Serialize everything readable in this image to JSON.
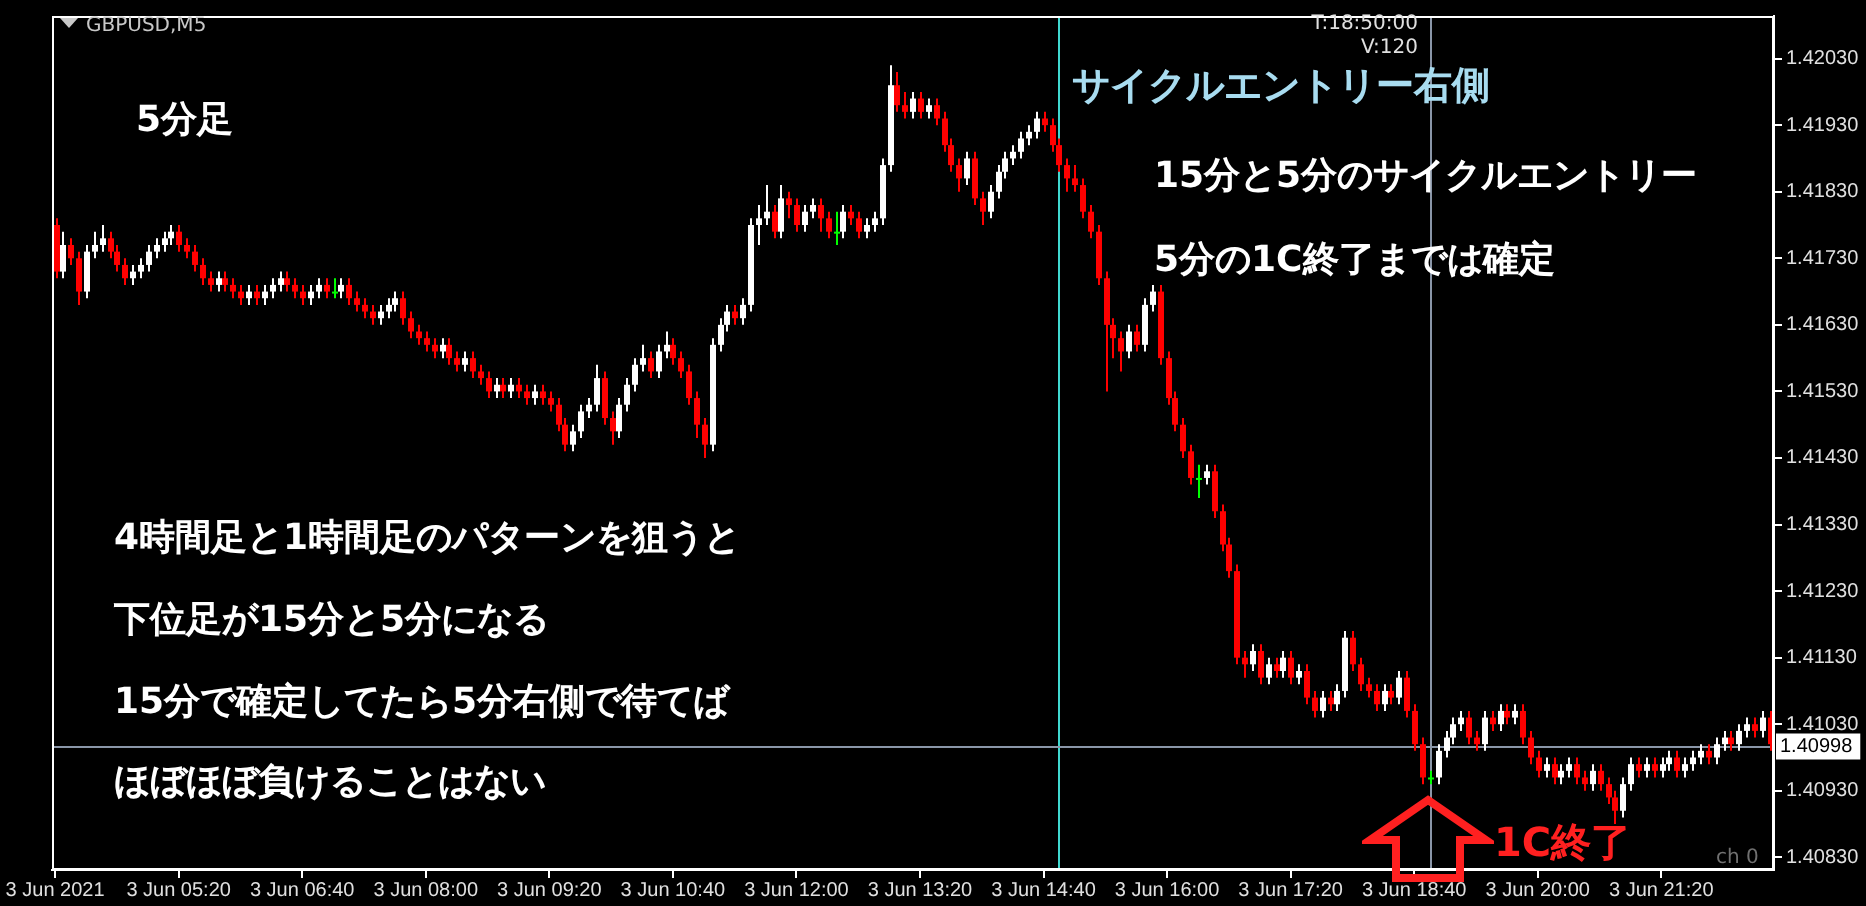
{
  "chart_data": {
    "type": "candlestick",
    "x": [
      "2021-06-03T04:00",
      "2021-06-03T04:05",
      "2021-06-03T04:10",
      "2021-06-03T04:15",
      "2021-06-03T04:20",
      "2021-06-03T04:25",
      "2021-06-03T04:30",
      "2021-06-03T04:35",
      "2021-06-03T04:40",
      "2021-06-03T04:45",
      "2021-06-03T04:50",
      "2021-06-03T04:55",
      "2021-06-03T05:00",
      "2021-06-03T05:05",
      "2021-06-03T05:10",
      "2021-06-03T05:15",
      "2021-06-03T05:20",
      "2021-06-03T05:25",
      "2021-06-03T05:30",
      "2021-06-03T05:35",
      "2021-06-03T05:40",
      "2021-06-03T05:45",
      "2021-06-03T05:50",
      "2021-06-03T05:55",
      "2021-06-03T06:00",
      "2021-06-03T06:05",
      "2021-06-03T06:10",
      "2021-06-03T06:15",
      "2021-06-03T06:20",
      "2021-06-03T06:25",
      "2021-06-03T06:30",
      "2021-06-03T06:35",
      "2021-06-03T06:40",
      "2021-06-03T06:45",
      "2021-06-03T06:50",
      "2021-06-03T06:55",
      "2021-06-03T07:00",
      "2021-06-03T07:05",
      "2021-06-03T07:10",
      "2021-06-03T07:15",
      "2021-06-03T07:20",
      "2021-06-03T07:25",
      "2021-06-03T07:30",
      "2021-06-03T07:35",
      "2021-06-03T07:40",
      "2021-06-03T07:45",
      "2021-06-03T07:50",
      "2021-06-03T07:55",
      "2021-06-03T08:00",
      "2021-06-03T08:05",
      "2021-06-03T08:10",
      "2021-06-03T08:15",
      "2021-06-03T08:20",
      "2021-06-03T08:25",
      "2021-06-03T08:30",
      "2021-06-03T08:35",
      "2021-06-03T08:40",
      "2021-06-03T08:45",
      "2021-06-03T08:50",
      "2021-06-03T08:55",
      "2021-06-03T09:00",
      "2021-06-03T09:05",
      "2021-06-03T09:10",
      "2021-06-03T09:15",
      "2021-06-03T09:20",
      "2021-06-03T09:25",
      "2021-06-03T09:30",
      "2021-06-03T09:35",
      "2021-06-03T09:40",
      "2021-06-03T09:45",
      "2021-06-03T09:50",
      "2021-06-03T09:55",
      "2021-06-03T10:00",
      "2021-06-03T10:05",
      "2021-06-03T10:10",
      "2021-06-03T10:15",
      "2021-06-03T10:20",
      "2021-06-03T10:25",
      "2021-06-03T10:30",
      "2021-06-03T10:35",
      "2021-06-03T10:40",
      "2021-06-03T10:45",
      "2021-06-03T10:50",
      "2021-06-03T10:55",
      "2021-06-03T11:00",
      "2021-06-03T11:05",
      "2021-06-03T11:10",
      "2021-06-03T11:15",
      "2021-06-03T11:20",
      "2021-06-03T11:25",
      "2021-06-03T11:30",
      "2021-06-03T11:35",
      "2021-06-03T11:40",
      "2021-06-03T11:45",
      "2021-06-03T11:50",
      "2021-06-03T11:55",
      "2021-06-03T12:00",
      "2021-06-03T12:05",
      "2021-06-03T12:10",
      "2021-06-03T12:15",
      "2021-06-03T12:20",
      "2021-06-03T12:25",
      "2021-06-03T12:30",
      "2021-06-03T12:35",
      "2021-06-03T12:40",
      "2021-06-03T12:45",
      "2021-06-03T12:50",
      "2021-06-03T12:55",
      "2021-06-03T13:00",
      "2021-06-03T13:05",
      "2021-06-03T13:10",
      "2021-06-03T13:15",
      "2021-06-03T13:20",
      "2021-06-03T13:25",
      "2021-06-03T13:30",
      "2021-06-03T13:35",
      "2021-06-03T13:40",
      "2021-06-03T13:45",
      "2021-06-03T13:50",
      "2021-06-03T13:55",
      "2021-06-03T14:00",
      "2021-06-03T14:05",
      "2021-06-03T14:10",
      "2021-06-03T14:15",
      "2021-06-03T14:20",
      "2021-06-03T14:25",
      "2021-06-03T14:30",
      "2021-06-03T14:35",
      "2021-06-03T14:40",
      "2021-06-03T14:45",
      "2021-06-03T14:50",
      "2021-06-03T14:55",
      "2021-06-03T15:00",
      "2021-06-03T15:05",
      "2021-06-03T15:10",
      "2021-06-03T15:15",
      "2021-06-03T15:20",
      "2021-06-03T15:25",
      "2021-06-03T15:30",
      "2021-06-03T15:35",
      "2021-06-03T15:40",
      "2021-06-03T15:45",
      "2021-06-03T15:50",
      "2021-06-03T15:55",
      "2021-06-03T16:00",
      "2021-06-03T16:05",
      "2021-06-03T16:10",
      "2021-06-03T16:15",
      "2021-06-03T16:20",
      "2021-06-03T16:25",
      "2021-06-03T16:30",
      "2021-06-03T16:35",
      "2021-06-03T16:40",
      "2021-06-03T16:45",
      "2021-06-03T16:50",
      "2021-06-03T16:55",
      "2021-06-03T17:00",
      "2021-06-03T17:05",
      "2021-06-03T17:10",
      "2021-06-03T17:15",
      "2021-06-03T17:20",
      "2021-06-03T17:25",
      "2021-06-03T17:30",
      "2021-06-03T17:35",
      "2021-06-03T17:40",
      "2021-06-03T17:45",
      "2021-06-03T17:50",
      "2021-06-03T17:55",
      "2021-06-03T18:00",
      "2021-06-03T18:05",
      "2021-06-03T18:10",
      "2021-06-03T18:15",
      "2021-06-03T18:20",
      "2021-06-03T18:25",
      "2021-06-03T18:30",
      "2021-06-03T18:35",
      "2021-06-03T18:40",
      "2021-06-03T18:45",
      "2021-06-03T18:50",
      "2021-06-03T18:55",
      "2021-06-03T19:00",
      "2021-06-03T19:05",
      "2021-06-03T19:10",
      "2021-06-03T19:15",
      "2021-06-03T19:20",
      "2021-06-03T19:25",
      "2021-06-03T19:30",
      "2021-06-03T19:35",
      "2021-06-03T19:40",
      "2021-06-03T19:45",
      "2021-06-03T19:50",
      "2021-06-03T19:55",
      "2021-06-03T20:00",
      "2021-06-03T20:05",
      "2021-06-03T20:10",
      "2021-06-03T20:15",
      "2021-06-03T20:20",
      "2021-06-03T20:25",
      "2021-06-03T20:30",
      "2021-06-03T20:35",
      "2021-06-03T20:40",
      "2021-06-03T20:45",
      "2021-06-03T20:50",
      "2021-06-03T20:55",
      "2021-06-03T21:00",
      "2021-06-03T21:05",
      "2021-06-03T21:10",
      "2021-06-03T21:15",
      "2021-06-03T21:20",
      "2021-06-03T21:25",
      "2021-06-03T21:30",
      "2021-06-03T21:35",
      "2021-06-03T21:40",
      "2021-06-03T21:45",
      "2021-06-03T21:50",
      "2021-06-03T21:55",
      "2021-06-03T22:00",
      "2021-06-03T22:05",
      "2021-06-03T22:10",
      "2021-06-03T22:15",
      "2021-06-03T22:20",
      "2021-06-03T22:25",
      "2021-06-03T22:30"
    ],
    "ohlc": [
      [
        1.4178,
        1.4179,
        1.417,
        1.4171
      ],
      [
        1.4171,
        1.4177,
        1.417,
        1.4175
      ],
      [
        1.4175,
        1.4176,
        1.4172,
        1.4173
      ],
      [
        1.4173,
        1.4174,
        1.4166,
        1.4168
      ],
      [
        1.4168,
        1.4175,
        1.4167,
        1.4174
      ],
      [
        1.4174,
        1.4177,
        1.4173,
        1.4175
      ],
      [
        1.4175,
        1.4178,
        1.4174,
        1.4176
      ],
      [
        1.4176,
        1.4177,
        1.4173,
        1.4174
      ],
      [
        1.4174,
        1.4175,
        1.4171,
        1.4172
      ],
      [
        1.4172,
        1.4173,
        1.4169,
        1.417
      ],
      [
        1.417,
        1.4172,
        1.4169,
        1.4171
      ],
      [
        1.4171,
        1.4173,
        1.417,
        1.4172
      ],
      [
        1.4172,
        1.4175,
        1.4171,
        1.4174
      ],
      [
        1.4174,
        1.4176,
        1.4173,
        1.4175
      ],
      [
        1.4175,
        1.4177,
        1.4174,
        1.4176
      ],
      [
        1.4176,
        1.4178,
        1.4175,
        1.4177
      ],
      [
        1.4177,
        1.4178,
        1.4174,
        1.4175
      ],
      [
        1.4175,
        1.4176,
        1.4173,
        1.4174
      ],
      [
        1.4174,
        1.4175,
        1.4171,
        1.4172
      ],
      [
        1.4172,
        1.4173,
        1.4169,
        1.417
      ],
      [
        1.417,
        1.4171,
        1.4168,
        1.4169
      ],
      [
        1.4169,
        1.4171,
        1.4168,
        1.417
      ],
      [
        1.417,
        1.4171,
        1.4168,
        1.4169
      ],
      [
        1.4169,
        1.417,
        1.4167,
        1.4168
      ],
      [
        1.4168,
        1.4169,
        1.4166,
        1.4167
      ],
      [
        1.4167,
        1.4169,
        1.4166,
        1.4168
      ],
      [
        1.4168,
        1.4169,
        1.4166,
        1.4167
      ],
      [
        1.4167,
        1.4169,
        1.4166,
        1.4168
      ],
      [
        1.4168,
        1.417,
        1.4167,
        1.4169
      ],
      [
        1.4169,
        1.4171,
        1.4168,
        1.417
      ],
      [
        1.417,
        1.4171,
        1.4168,
        1.4169
      ],
      [
        1.4169,
        1.417,
        1.4167,
        1.4168
      ],
      [
        1.4168,
        1.4169,
        1.4166,
        1.4167
      ],
      [
        1.4167,
        1.4169,
        1.4166,
        1.4168
      ],
      [
        1.4168,
        1.417,
        1.4167,
        1.4169
      ],
      [
        1.4169,
        1.417,
        1.4167,
        1.4168
      ],
      [
        1.4168,
        1.417,
        1.4167,
        1.4168
      ],
      [
        1.4168,
        1.417,
        1.4167,
        1.4169
      ],
      [
        1.4169,
        1.417,
        1.4166,
        1.4167
      ],
      [
        1.4167,
        1.4168,
        1.4165,
        1.4166
      ],
      [
        1.4166,
        1.4167,
        1.4164,
        1.4165
      ],
      [
        1.4165,
        1.4166,
        1.4163,
        1.4164
      ],
      [
        1.4164,
        1.4166,
        1.4163,
        1.4165
      ],
      [
        1.4165,
        1.4167,
        1.4164,
        1.4166
      ],
      [
        1.4166,
        1.4168,
        1.4165,
        1.4167
      ],
      [
        1.4167,
        1.4168,
        1.4163,
        1.4164
      ],
      [
        1.4164,
        1.4165,
        1.4161,
        1.4162
      ],
      [
        1.4162,
        1.4163,
        1.416,
        1.4161
      ],
      [
        1.4161,
        1.4162,
        1.4159,
        1.416
      ],
      [
        1.416,
        1.4161,
        1.4158,
        1.4159
      ],
      [
        1.4159,
        1.4161,
        1.4158,
        1.416
      ],
      [
        1.416,
        1.4161,
        1.4157,
        1.4158
      ],
      [
        1.4158,
        1.4159,
        1.4156,
        1.4157
      ],
      [
        1.4157,
        1.4159,
        1.4156,
        1.4158
      ],
      [
        1.4158,
        1.4159,
        1.4155,
        1.4156
      ],
      [
        1.4156,
        1.4157,
        1.4154,
        1.4155
      ],
      [
        1.4155,
        1.4156,
        1.4152,
        1.4153
      ],
      [
        1.4153,
        1.4155,
        1.4152,
        1.4154
      ],
      [
        1.4154,
        1.4155,
        1.4152,
        1.4153
      ],
      [
        1.4153,
        1.4155,
        1.4152,
        1.4154
      ],
      [
        1.4154,
        1.4155,
        1.4152,
        1.4153
      ],
      [
        1.4153,
        1.4154,
        1.4151,
        1.4152
      ],
      [
        1.4152,
        1.4154,
        1.4151,
        1.4153
      ],
      [
        1.4153,
        1.4154,
        1.4151,
        1.4152
      ],
      [
        1.4152,
        1.4153,
        1.415,
        1.4151
      ],
      [
        1.4151,
        1.4152,
        1.4147,
        1.4148
      ],
      [
        1.4148,
        1.4149,
        1.4144,
        1.4145
      ],
      [
        1.4145,
        1.4148,
        1.4144,
        1.4147
      ],
      [
        1.4147,
        1.4151,
        1.4146,
        1.415
      ],
      [
        1.415,
        1.4152,
        1.4149,
        1.4151
      ],
      [
        1.4151,
        1.4157,
        1.415,
        1.4155
      ],
      [
        1.4155,
        1.4156,
        1.4148,
        1.4149
      ],
      [
        1.4149,
        1.415,
        1.4145,
        1.4147
      ],
      [
        1.4147,
        1.4152,
        1.4146,
        1.4151
      ],
      [
        1.4151,
        1.4155,
        1.415,
        1.4154
      ],
      [
        1.4154,
        1.4158,
        1.4153,
        1.4157
      ],
      [
        1.4157,
        1.416,
        1.4156,
        1.4158
      ],
      [
        1.4158,
        1.4159,
        1.4155,
        1.4156
      ],
      [
        1.4156,
        1.416,
        1.4155,
        1.4159
      ],
      [
        1.4159,
        1.4162,
        1.4158,
        1.416
      ],
      [
        1.416,
        1.4161,
        1.4157,
        1.4158
      ],
      [
        1.4158,
        1.4159,
        1.4155,
        1.4156
      ],
      [
        1.4156,
        1.4157,
        1.4151,
        1.4152
      ],
      [
        1.4152,
        1.4153,
        1.4146,
        1.4148
      ],
      [
        1.4148,
        1.4149,
        1.4143,
        1.4145
      ],
      [
        1.4145,
        1.4161,
        1.4144,
        1.416
      ],
      [
        1.416,
        1.4164,
        1.4159,
        1.4163
      ],
      [
        1.4163,
        1.4166,
        1.4162,
        1.4165
      ],
      [
        1.4165,
        1.4166,
        1.4163,
        1.4164
      ],
      [
        1.4164,
        1.4167,
        1.4163,
        1.4166
      ],
      [
        1.4166,
        1.4179,
        1.4165,
        1.4178
      ],
      [
        1.4178,
        1.4181,
        1.4175,
        1.4179
      ],
      [
        1.4179,
        1.4184,
        1.4178,
        1.418
      ],
      [
        1.418,
        1.4181,
        1.4176,
        1.4177
      ],
      [
        1.4177,
        1.4184,
        1.4176,
        1.4182
      ],
      [
        1.4182,
        1.4183,
        1.4179,
        1.4181
      ],
      [
        1.4181,
        1.4182,
        1.4177,
        1.4178
      ],
      [
        1.4178,
        1.4181,
        1.4177,
        1.418
      ],
      [
        1.418,
        1.4182,
        1.4179,
        1.4181
      ],
      [
        1.4181,
        1.4182,
        1.4177,
        1.4179
      ],
      [
        1.4179,
        1.418,
        1.4176,
        1.4177
      ],
      [
        1.4177,
        1.418,
        1.4175,
        1.4177
      ],
      [
        1.4177,
        1.4181,
        1.4176,
        1.418
      ],
      [
        1.418,
        1.4181,
        1.4178,
        1.4179
      ],
      [
        1.4179,
        1.418,
        1.4176,
        1.4177
      ],
      [
        1.4177,
        1.4179,
        1.4176,
        1.4178
      ],
      [
        1.4178,
        1.418,
        1.4177,
        1.4179
      ],
      [
        1.4179,
        1.4188,
        1.4178,
        1.4187
      ],
      [
        1.4187,
        1.4202,
        1.4186,
        1.4199
      ],
      [
        1.4199,
        1.4201,
        1.4195,
        1.4196
      ],
      [
        1.4196,
        1.4198,
        1.4194,
        1.4195
      ],
      [
        1.4195,
        1.4198,
        1.4194,
        1.4197
      ],
      [
        1.4197,
        1.4198,
        1.4194,
        1.4195
      ],
      [
        1.4195,
        1.4197,
        1.4194,
        1.4196
      ],
      [
        1.4196,
        1.4197,
        1.4193,
        1.4194
      ],
      [
        1.4194,
        1.4195,
        1.4189,
        1.419
      ],
      [
        1.419,
        1.4191,
        1.4186,
        1.4187
      ],
      [
        1.4187,
        1.4188,
        1.4183,
        1.4185
      ],
      [
        1.4185,
        1.4189,
        1.4184,
        1.4188
      ],
      [
        1.4188,
        1.4189,
        1.4181,
        1.4182
      ],
      [
        1.4182,
        1.4183,
        1.4178,
        1.418
      ],
      [
        1.418,
        1.4184,
        1.4179,
        1.4183
      ],
      [
        1.4183,
        1.4187,
        1.4182,
        1.4186
      ],
      [
        1.4186,
        1.4189,
        1.4185,
        1.4188
      ],
      [
        1.4188,
        1.419,
        1.4187,
        1.4189
      ],
      [
        1.4189,
        1.4192,
        1.4188,
        1.4191
      ],
      [
        1.4191,
        1.4193,
        1.419,
        1.4192
      ],
      [
        1.4192,
        1.4195,
        1.4191,
        1.4194
      ],
      [
        1.4194,
        1.4195,
        1.4192,
        1.4193
      ],
      [
        1.4193,
        1.4194,
        1.4189,
        1.419
      ],
      [
        1.419,
        1.4191,
        1.4186,
        1.4187
      ],
      [
        1.4187,
        1.4188,
        1.4183,
        1.4185
      ],
      [
        1.4185,
        1.4187,
        1.4183,
        1.4184
      ],
      [
        1.4184,
        1.4185,
        1.4179,
        1.418
      ],
      [
        1.418,
        1.4181,
        1.4176,
        1.4177
      ],
      [
        1.4177,
        1.4178,
        1.4169,
        1.417
      ],
      [
        1.417,
        1.4171,
        1.4153,
        1.4163
      ],
      [
        1.4163,
        1.4164,
        1.4158,
        1.4161
      ],
      [
        1.4161,
        1.4162,
        1.4156,
        1.4159
      ],
      [
        1.4159,
        1.4163,
        1.4158,
        1.4162
      ],
      [
        1.4162,
        1.4163,
        1.4159,
        1.416
      ],
      [
        1.416,
        1.4167,
        1.4159,
        1.4166
      ],
      [
        1.4166,
        1.4169,
        1.4165,
        1.4168
      ],
      [
        1.4168,
        1.4169,
        1.4157,
        1.4158
      ],
      [
        1.4158,
        1.4159,
        1.4151,
        1.4152
      ],
      [
        1.4152,
        1.4153,
        1.4147,
        1.4148
      ],
      [
        1.4148,
        1.4149,
        1.4143,
        1.4144
      ],
      [
        1.4144,
        1.4145,
        1.4139,
        1.414
      ],
      [
        1.414,
        1.4142,
        1.4137,
        1.414
      ],
      [
        1.414,
        1.4142,
        1.4139,
        1.4141
      ],
      [
        1.4141,
        1.4142,
        1.4134,
        1.4135
      ],
      [
        1.4135,
        1.4136,
        1.4129,
        1.413
      ],
      [
        1.413,
        1.4131,
        1.4125,
        1.4126
      ],
      [
        1.4126,
        1.4127,
        1.4112,
        1.4113
      ],
      [
        1.4113,
        1.4114,
        1.411,
        1.4112
      ],
      [
        1.4112,
        1.4115,
        1.4111,
        1.4114
      ],
      [
        1.4114,
        1.4115,
        1.4109,
        1.411
      ],
      [
        1.411,
        1.4113,
        1.4109,
        1.4112
      ],
      [
        1.4112,
        1.4113,
        1.411,
        1.4111
      ],
      [
        1.4111,
        1.4114,
        1.411,
        1.4113
      ],
      [
        1.4113,
        1.4114,
        1.4109,
        1.411
      ],
      [
        1.411,
        1.4112,
        1.4109,
        1.4111
      ],
      [
        1.4111,
        1.4112,
        1.4106,
        1.4107
      ],
      [
        1.4107,
        1.4108,
        1.4104,
        1.4105
      ],
      [
        1.4105,
        1.4108,
        1.4104,
        1.4107
      ],
      [
        1.4107,
        1.4108,
        1.4105,
        1.4106
      ],
      [
        1.4106,
        1.4109,
        1.4105,
        1.4108
      ],
      [
        1.4108,
        1.4117,
        1.4107,
        1.4116
      ],
      [
        1.4116,
        1.4117,
        1.4111,
        1.4112
      ],
      [
        1.4112,
        1.4113,
        1.4108,
        1.4109
      ],
      [
        1.4109,
        1.411,
        1.4107,
        1.4108
      ],
      [
        1.4108,
        1.4109,
        1.4105,
        1.4106
      ],
      [
        1.4106,
        1.4109,
        1.4105,
        1.4108
      ],
      [
        1.4108,
        1.4109,
        1.4106,
        1.4107
      ],
      [
        1.4107,
        1.4111,
        1.4106,
        1.411
      ],
      [
        1.411,
        1.4111,
        1.4104,
        1.4105
      ],
      [
        1.4105,
        1.4106,
        1.4099,
        1.41
      ],
      [
        1.41,
        1.4101,
        1.4094,
        1.4095
      ],
      [
        1.4095,
        1.4096,
        1.4094,
        1.4095
      ],
      [
        1.4095,
        1.41,
        1.4094,
        1.4099
      ],
      [
        1.4099,
        1.4102,
        1.4098,
        1.4101
      ],
      [
        1.4101,
        1.4104,
        1.41,
        1.4103
      ],
      [
        1.4103,
        1.4105,
        1.4102,
        1.4104
      ],
      [
        1.4104,
        1.4105,
        1.41,
        1.4101
      ],
      [
        1.4101,
        1.4102,
        1.4099,
        1.41
      ],
      [
        1.41,
        1.4105,
        1.4099,
        1.4104
      ],
      [
        1.4104,
        1.4105,
        1.4102,
        1.4103
      ],
      [
        1.4103,
        1.4106,
        1.4102,
        1.4105
      ],
      [
        1.4105,
        1.4106,
        1.4103,
        1.4104
      ],
      [
        1.4104,
        1.4106,
        1.4103,
        1.4105
      ],
      [
        1.4105,
        1.4106,
        1.41,
        1.4101
      ],
      [
        1.4101,
        1.4102,
        1.4097,
        1.4098
      ],
      [
        1.4098,
        1.4099,
        1.4095,
        1.4096
      ],
      [
        1.4096,
        1.4098,
        1.4095,
        1.4097
      ],
      [
        1.4097,
        1.4098,
        1.4094,
        1.4095
      ],
      [
        1.4095,
        1.4097,
        1.4094,
        1.4096
      ],
      [
        1.4096,
        1.4098,
        1.4095,
        1.4097
      ],
      [
        1.4097,
        1.4098,
        1.4094,
        1.4095
      ],
      [
        1.4095,
        1.4096,
        1.4093,
        1.4094
      ],
      [
        1.4094,
        1.4097,
        1.4093,
        1.4096
      ],
      [
        1.4096,
        1.4097,
        1.4093,
        1.4094
      ],
      [
        1.4094,
        1.4095,
        1.4091,
        1.4092
      ],
      [
        1.4092,
        1.4093,
        1.4088,
        1.409
      ],
      [
        1.409,
        1.4095,
        1.4089,
        1.4094
      ],
      [
        1.4094,
        1.4098,
        1.4093,
        1.4097
      ],
      [
        1.4097,
        1.4098,
        1.4095,
        1.4096
      ],
      [
        1.4096,
        1.4098,
        1.4095,
        1.4097
      ],
      [
        1.4097,
        1.4098,
        1.4095,
        1.4096
      ],
      [
        1.4096,
        1.4098,
        1.4095,
        1.4097
      ],
      [
        1.4097,
        1.4099,
        1.4096,
        1.4098
      ],
      [
        1.4098,
        1.4099,
        1.4095,
        1.4096
      ],
      [
        1.4096,
        1.4098,
        1.4095,
        1.4097
      ],
      [
        1.4097,
        1.4099,
        1.4096,
        1.4098
      ],
      [
        1.4098,
        1.41,
        1.4097,
        1.4099
      ],
      [
        1.4099,
        1.41,
        1.4097,
        1.4098
      ],
      [
        1.4098,
        1.4101,
        1.4097,
        1.41
      ],
      [
        1.41,
        1.4102,
        1.4099,
        1.4101
      ],
      [
        1.4101,
        1.4102,
        1.4099,
        1.41
      ],
      [
        1.41,
        1.4103,
        1.4099,
        1.4102
      ],
      [
        1.4102,
        1.4104,
        1.4101,
        1.4103
      ],
      [
        1.4103,
        1.4104,
        1.4101,
        1.4102
      ],
      [
        1.4102,
        1.4105,
        1.4101,
        1.4104
      ],
      [
        1.4104,
        1.4105,
        1.4099,
        1.41
      ]
    ],
    "xlim": [
      "2021-06-03T03:58",
      "2021-06-03T22:33"
    ],
    "xticks": [
      {
        "value": "2021-06-03T04:00",
        "label": "3 Jun 2021"
      },
      {
        "value": "2021-06-03T05:20",
        "label": "3 Jun 05:20"
      },
      {
        "value": "2021-06-03T06:40",
        "label": "3 Jun 06:40"
      },
      {
        "value": "2021-06-03T08:00",
        "label": "3 Jun 08:00"
      },
      {
        "value": "2021-06-03T09:20",
        "label": "3 Jun 09:20"
      },
      {
        "value": "2021-06-03T10:40",
        "label": "3 Jun 10:40"
      },
      {
        "value": "2021-06-03T12:00",
        "label": "3 Jun 12:00"
      },
      {
        "value": "2021-06-03T13:20",
        "label": "3 Jun 13:20"
      },
      {
        "value": "2021-06-03T14:40",
        "label": "3 Jun 14:40"
      },
      {
        "value": "2021-06-03T16:00",
        "label": "3 Jun 16:00"
      },
      {
        "value": "2021-06-03T17:20",
        "label": "3 Jun 17:20"
      },
      {
        "value": "2021-06-03T18:40",
        "label": "3 Jun 18:40"
      },
      {
        "value": "2021-06-03T20:00",
        "label": "3 Jun 20:00"
      },
      {
        "value": "2021-06-03T21:20",
        "label": "3 Jun 21:20"
      }
    ],
    "ylim": [
      1.40811,
      1.42094
    ],
    "yticks": [
      {
        "value": 1.4083,
        "label": "1.40830"
      },
      {
        "value": 1.4093,
        "label": "1.40930"
      },
      {
        "value": 1.4103,
        "label": "1.41030"
      },
      {
        "value": 1.4113,
        "label": "1.41130"
      },
      {
        "value": 1.4123,
        "label": "1.41230"
      },
      {
        "value": 1.4133,
        "label": "1.41330"
      },
      {
        "value": 1.4143,
        "label": "1.41430"
      },
      {
        "value": 1.4153,
        "label": "1.41530"
      },
      {
        "value": 1.4163,
        "label": "1.41630"
      },
      {
        "value": 1.4173,
        "label": "1.41730"
      },
      {
        "value": 1.4183,
        "label": "1.41830"
      },
      {
        "value": 1.4193,
        "label": "1.41930"
      },
      {
        "value": 1.4203,
        "label": "1.42030"
      }
    ],
    "ref_lines": [
      {
        "axis": "x",
        "value": "2021-06-03T14:50",
        "color": "#40d8d0"
      },
      {
        "axis": "x",
        "value": "2021-06-03T18:50",
        "color": "#8a96a8"
      },
      {
        "axis": "y",
        "value": 1.40998,
        "label": "1.40998",
        "color": "#8a96a8"
      }
    ],
    "annotations": [
      "GBPUSD,M5",
      "T:18:50:00",
      "V:120",
      "5分足",
      "サイクルエントリー右側",
      "15分と5分のサイクルエントリー",
      "5分の1C終了までは確定",
      "4時間足と1時間足のパターンを狙うと",
      "下位足が15分と5分になる",
      "15分で確定してたら5分右側で待てば",
      "ほぼほぼ負けることはない",
      "1C終了",
      "ch 0"
    ]
  }
}
